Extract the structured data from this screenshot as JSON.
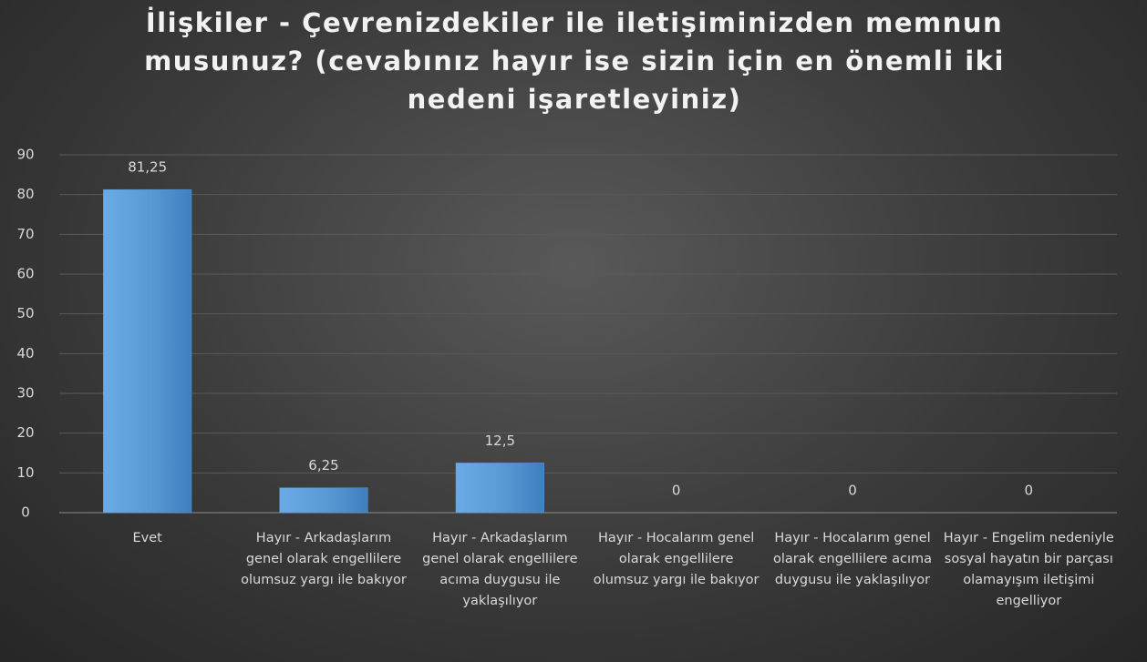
{
  "chart_data": {
    "type": "bar",
    "title": "İlişkiler - Çevrenizdekiler ile iletişiminizden memnun musunuz? (cevabınız hayır ise sizin için en önemli iki nedeni işaretleyiniz)",
    "categories": [
      "Evet",
      "Hayır - Arkadaşlarım genel olarak engellilere olumsuz yargı ile bakıyor",
      "Hayır - Arkadaşlarım genel olarak engellilere acıma duygusu ile yaklaşılıyor",
      "Hayır - Hocalarım genel olarak engellilere olumsuz yargı ile bakıyor",
      "Hayır - Hocalarım genel olarak engellilere acıma duygusu ile yaklaşılıyor",
      "Hayır - Engelim nedeniyle sosyal hayatın bir parçası olamayışım iletişimi engelliyor"
    ],
    "values": [
      81.25,
      6.25,
      12.5,
      0,
      0,
      0
    ],
    "value_labels": [
      "81,25",
      "6,25",
      "12,5",
      "0",
      "0",
      "0"
    ],
    "color": "#5b9bd5",
    "ylim": [
      0,
      90
    ],
    "yticks": [
      0,
      10,
      20,
      30,
      40,
      50,
      60,
      70,
      80,
      90
    ],
    "grid": true
  }
}
